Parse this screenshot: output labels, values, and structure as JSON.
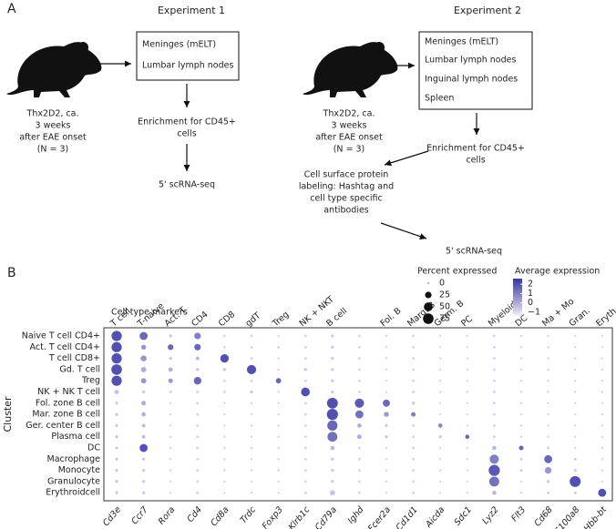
{
  "panel_a": {
    "panel_label": "A",
    "experiment1": {
      "title": "Experiment 1",
      "mouse_label": [
        "Thx2D2, ca.",
        "3 weeks",
        "after EAE onset",
        "(N = 3)"
      ],
      "box": [
        "Meninges (mELT)",
        "Lumbar lymph nodes"
      ],
      "steps": [
        "Enrichment for CD45+",
        "cells",
        "5' scRNA-seq"
      ]
    },
    "experiment2": {
      "title": "Experiment 2",
      "mouse_label": [
        "Thx2D2, ca.",
        "3 weeks",
        "after EAE onset",
        "(N = 3)"
      ],
      "box": [
        "Meninges (mELT)",
        "Lumbar lymph nodes",
        "Inguinal lymph nodes",
        "Spleen"
      ],
      "steps": [
        "Enrichment for CD45+",
        "cells",
        "Cell surface protein",
        "labeling: Hashtag and",
        "cell type specific",
        "antibodies",
        "5' scRNA-seq"
      ]
    }
  },
  "chart_data": {
    "type": "dotplot",
    "panel_label": "B",
    "group_title": "Cell type markers",
    "y_label": "Cluster",
    "genes": [
      "Cd3e",
      "Ccr7",
      "Rora",
      "Cd4",
      "Cd8a",
      "Trdc",
      "Foxp3",
      "Klrb1c",
      "Cd79a",
      "Ighd",
      "Fcer2a",
      "Cd1d1",
      "Aicda",
      "Sdc1",
      "Lyz2",
      "Flt3",
      "Cd68",
      "S100a8",
      "Hbb-bt"
    ],
    "marker_groups": [
      "T cell",
      "T-naive",
      "Act. T",
      "CD4",
      "CD8",
      "gdT",
      "Treg",
      "NK + NKT",
      "B cell",
      null,
      "Fol. B",
      "Marg. B",
      "Germ. B",
      "PC",
      "Myeloid",
      "DC",
      "Ma + Mo",
      "Gran.",
      "Eryth."
    ],
    "clusters": [
      "Naive T cell CD4+",
      "Act. T cell CD4+",
      "T cell CD8+",
      "Gd. T cell",
      "Treg",
      "NK + NK T cell",
      "Fol. zone B cell",
      "Mar. zone B cell",
      "Ger. center B cell",
      "Plasma cell",
      "DC",
      "Macrophage",
      "Monocyte",
      "Granulocyte",
      "Erythroidcell"
    ],
    "percent": [
      [
        70,
        40,
        3,
        25,
        2,
        2,
        1,
        2,
        3,
        2,
        1,
        2,
        1,
        1,
        2,
        1,
        1,
        1,
        1
      ],
      [
        70,
        12,
        18,
        25,
        2,
        2,
        2,
        2,
        3,
        2,
        1,
        2,
        1,
        1,
        2,
        1,
        1,
        1,
        1
      ],
      [
        70,
        20,
        3,
        5,
        45,
        2,
        1,
        2,
        3,
        2,
        1,
        2,
        1,
        1,
        2,
        1,
        1,
        1,
        1
      ],
      [
        75,
        15,
        8,
        3,
        3,
        55,
        1,
        3,
        3,
        2,
        1,
        2,
        1,
        1,
        2,
        1,
        1,
        1,
        1
      ],
      [
        70,
        15,
        10,
        35,
        2,
        2,
        15,
        2,
        3,
        2,
        1,
        2,
        1,
        1,
        2,
        1,
        1,
        1,
        1
      ],
      [
        10,
        3,
        2,
        2,
        2,
        3,
        1,
        50,
        3,
        2,
        1,
        2,
        1,
        1,
        2,
        1,
        1,
        1,
        1
      ],
      [
        3,
        10,
        1,
        2,
        1,
        1,
        1,
        2,
        80,
        55,
        30,
        3,
        1,
        1,
        2,
        1,
        1,
        1,
        1
      ],
      [
        3,
        8,
        1,
        2,
        1,
        1,
        1,
        2,
        85,
        40,
        12,
        10,
        1,
        1,
        2,
        1,
        1,
        1,
        1
      ],
      [
        3,
        5,
        1,
        2,
        1,
        1,
        1,
        2,
        70,
        8,
        3,
        2,
        8,
        1,
        2,
        1,
        1,
        1,
        1
      ],
      [
        3,
        5,
        1,
        2,
        1,
        1,
        1,
        2,
        65,
        10,
        3,
        2,
        3,
        8,
        2,
        1,
        1,
        1,
        1
      ],
      [
        3,
        40,
        1,
        2,
        1,
        1,
        1,
        2,
        8,
        2,
        1,
        2,
        1,
        1,
        8,
        10,
        2,
        1,
        1
      ],
      [
        3,
        3,
        1,
        2,
        1,
        1,
        1,
        2,
        3,
        2,
        1,
        2,
        1,
        1,
        55,
        2,
        40,
        2,
        1
      ],
      [
        3,
        3,
        1,
        2,
        1,
        1,
        1,
        2,
        3,
        2,
        1,
        2,
        1,
        1,
        85,
        2,
        25,
        3,
        1
      ],
      [
        3,
        3,
        1,
        2,
        1,
        1,
        1,
        2,
        3,
        2,
        1,
        2,
        1,
        1,
        65,
        1,
        3,
        80,
        1
      ],
      [
        3,
        3,
        1,
        2,
        1,
        1,
        1,
        2,
        15,
        2,
        1,
        2,
        1,
        1,
        8,
        1,
        2,
        2,
        40
      ]
    ],
    "expression": [
      [
        2,
        1.5,
        -0.5,
        1,
        -0.8,
        -0.8,
        -0.8,
        -0.8,
        -0.6,
        -0.8,
        -0.8,
        -0.8,
        -0.8,
        -0.8,
        -0.8,
        -0.8,
        -0.8,
        -0.8,
        -0.8
      ],
      [
        2,
        0.5,
        1.5,
        1.5,
        -0.8,
        -0.8,
        -0.8,
        -0.8,
        -0.6,
        -0.8,
        -0.8,
        -0.8,
        -0.8,
        -0.8,
        -0.8,
        -0.8,
        -0.8,
        -0.8,
        -0.8
      ],
      [
        2,
        0.5,
        -0.5,
        -0.2,
        2,
        -0.8,
        -0.8,
        -0.8,
        -0.6,
        -0.8,
        -0.8,
        -0.8,
        -0.8,
        -0.8,
        -0.8,
        -0.8,
        -0.8,
        -0.8,
        -0.8
      ],
      [
        2,
        0,
        0,
        -0.5,
        -0.5,
        2,
        -0.8,
        -0.5,
        -0.6,
        -0.8,
        -0.8,
        -0.8,
        -0.8,
        -0.8,
        -0.8,
        -0.8,
        -0.8,
        -0.8,
        -0.8
      ],
      [
        2,
        0.5,
        0.5,
        1.5,
        -0.8,
        -0.8,
        1.5,
        -0.8,
        -0.6,
        -0.8,
        -0.8,
        -0.8,
        -0.8,
        -0.8,
        -0.8,
        -0.8,
        -0.8,
        -0.8,
        -0.8
      ],
      [
        -0.5,
        -0.6,
        -0.8,
        -0.8,
        -0.8,
        -0.5,
        -0.8,
        2,
        -0.6,
        -0.8,
        -0.8,
        -0.8,
        -0.8,
        -0.8,
        -0.8,
        -0.8,
        -0.8,
        -0.8,
        -0.8
      ],
      [
        -0.6,
        0,
        -0.8,
        -0.8,
        -0.8,
        -0.8,
        -0.8,
        -0.8,
        2,
        1.8,
        1.5,
        -0.6,
        -0.8,
        -0.8,
        -0.8,
        -0.8,
        -0.8,
        -0.8,
        -0.8
      ],
      [
        -0.6,
        0,
        -0.8,
        -0.8,
        -0.8,
        -0.8,
        -0.8,
        -0.8,
        2,
        1.3,
        0.5,
        1,
        -0.8,
        -0.8,
        -0.8,
        -0.8,
        -0.8,
        -0.8,
        -0.8
      ],
      [
        -0.6,
        -0.3,
        -0.8,
        -0.8,
        -0.8,
        -0.8,
        -0.8,
        -0.8,
        1.5,
        0,
        -0.6,
        -0.8,
        1,
        -0.8,
        -0.8,
        -0.8,
        -0.8,
        -0.8,
        -0.8
      ],
      [
        -0.6,
        -0.3,
        -0.8,
        -0.8,
        -0.8,
        -0.8,
        -0.8,
        -0.8,
        1.3,
        0,
        -0.6,
        -0.8,
        -0.6,
        1.5,
        -0.8,
        -0.8,
        -0.8,
        -0.8,
        -0.8
      ],
      [
        -0.6,
        2,
        -0.8,
        -0.8,
        -0.8,
        -0.8,
        -0.8,
        -0.8,
        -0.2,
        -0.8,
        -0.8,
        -0.8,
        -0.8,
        -0.8,
        -0.2,
        1.5,
        -0.6,
        -0.8,
        -0.8
      ],
      [
        -0.6,
        -0.6,
        -0.8,
        -0.8,
        -0.8,
        -0.8,
        -0.8,
        -0.8,
        -0.6,
        -0.8,
        -0.8,
        -0.8,
        -0.8,
        -0.8,
        1,
        -0.6,
        1.5,
        -0.6,
        -0.8
      ],
      [
        -0.6,
        -0.6,
        -0.8,
        -0.8,
        -0.8,
        -0.8,
        -0.8,
        -0.8,
        -0.6,
        -0.8,
        -0.8,
        -0.8,
        -0.8,
        -0.8,
        1.8,
        -0.6,
        0.5,
        -0.6,
        -0.8
      ],
      [
        -0.6,
        -0.6,
        -0.8,
        -0.8,
        -0.8,
        -0.8,
        -0.8,
        -0.8,
        -0.6,
        -0.8,
        -0.8,
        -0.8,
        -0.8,
        -0.8,
        1.3,
        -0.8,
        -0.6,
        2,
        -0.8
      ],
      [
        -0.6,
        -0.6,
        -0.8,
        -0.8,
        -0.8,
        -0.8,
        -0.8,
        -0.8,
        -0.5,
        -0.8,
        -0.8,
        -0.8,
        -0.8,
        -0.8,
        -0.2,
        -0.8,
        -0.6,
        -0.6,
        2
      ]
    ],
    "size_legend": {
      "title": "Percent expressed",
      "values": [
        0,
        25,
        50,
        75
      ]
    },
    "color_legend": {
      "title": "Average expression",
      "lim": [
        -1.3,
        2.6
      ],
      "ticks": [
        2,
        1,
        0,
        {
          "value": -1,
          "label": "−1"
        }
      ],
      "colors": [
        "#eeeaf5",
        "#3634a3"
      ]
    }
  }
}
